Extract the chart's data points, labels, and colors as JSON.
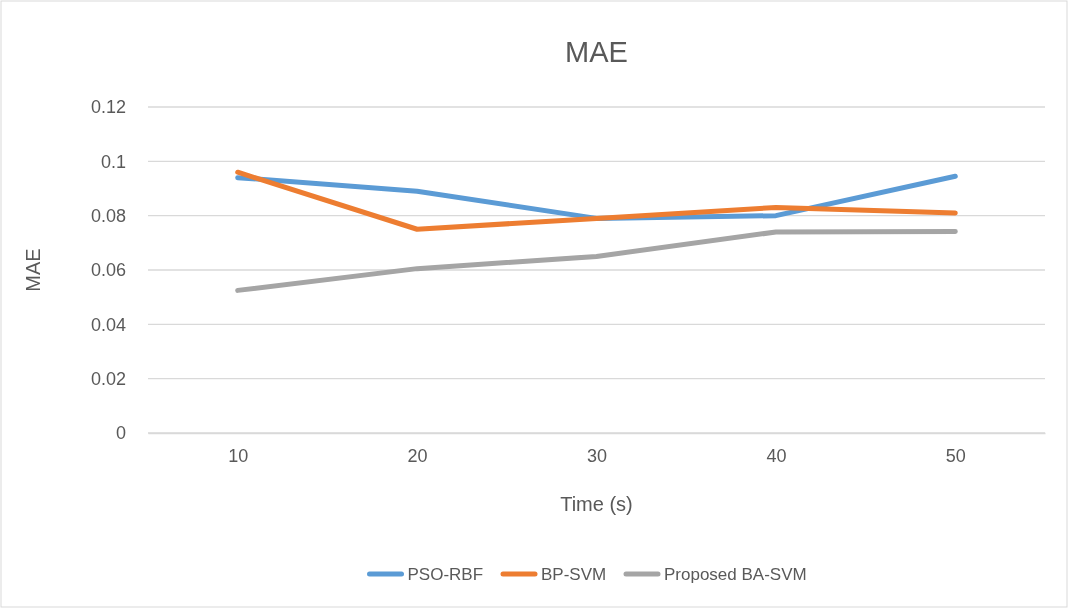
{
  "chart_data": {
    "type": "line",
    "title": "MAE",
    "xlabel": "Time (s)",
    "ylabel": "MAE",
    "categories": [
      "10",
      "20",
      "30",
      "40",
      "50"
    ],
    "series": [
      {
        "name": "PSO-RBF",
        "color": "#5b9bd5",
        "values": [
          0.094,
          0.089,
          0.079,
          0.08,
          0.0945
        ]
      },
      {
        "name": "BP-SVM",
        "color": "#ed7d31",
        "values": [
          0.096,
          0.075,
          0.079,
          0.083,
          0.081
        ]
      },
      {
        "name": "Proposed BA-SVM",
        "color": "#a5a5a5",
        "values": [
          0.0525,
          0.0605,
          0.065,
          0.074,
          0.0742
        ]
      }
    ],
    "ylim": [
      0,
      0.12
    ],
    "yticks": [
      0,
      0.02,
      0.04,
      0.06,
      0.08,
      0.1,
      0.12
    ],
    "grid": "y",
    "legend": "bottom",
    "marker": "none",
    "line_style": "solid"
  }
}
